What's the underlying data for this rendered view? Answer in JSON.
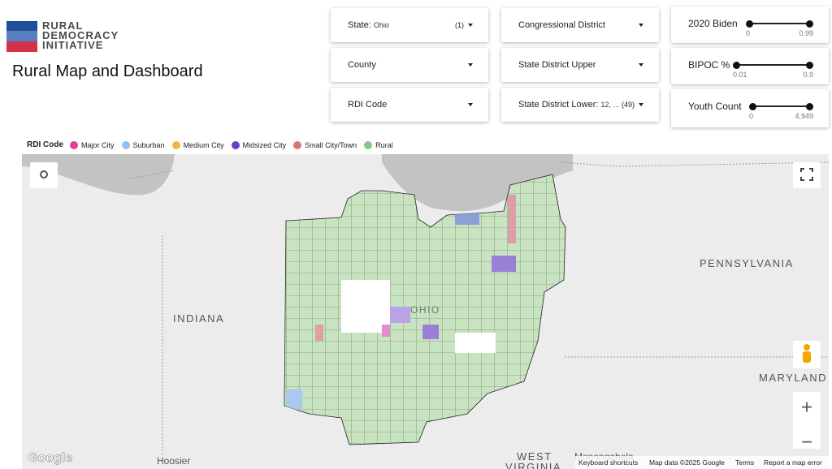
{
  "header": {
    "logo": [
      "RURAL",
      "DEMOCRACY",
      "INITIATIVE"
    ],
    "title": "Rural Map and Dashboard"
  },
  "filters": [
    {
      "label": "State:",
      "value": "Ohio",
      "count": "(1)"
    },
    {
      "label": "County"
    },
    {
      "label": "RDI Code"
    },
    {
      "label": "Congressional District"
    },
    {
      "label": "State District Upper"
    },
    {
      "label": "State District Lower:",
      "value": "12, ...",
      "count": "(49)"
    }
  ],
  "sliders": [
    {
      "label": "2020 Biden",
      "min": 0,
      "max": 0.99
    },
    {
      "label": "BIPOC %",
      "min": 0.01,
      "max": 0.9
    },
    {
      "label": "Youth Count",
      "min": 0,
      "max": "4,949"
    }
  ],
  "legend": {
    "title": "RDI Code",
    "items": [
      {
        "name": "Major City",
        "color": "#e0409a"
      },
      {
        "name": "Suburban",
        "color": "#8ec3f0"
      },
      {
        "name": "Medium City",
        "color": "#f0b83a"
      },
      {
        "name": "Midsized City",
        "color": "#6a3fc9"
      },
      {
        "name": "Small City/Town",
        "color": "#d97777"
      },
      {
        "name": "Rural",
        "color": "#86c786"
      }
    ]
  },
  "map": {
    "labels": [
      "INDIANA",
      "PENNSYLVANIA",
      "MARYLAND",
      "OHIO",
      "WEST",
      "VIRGINIA",
      "Hoosier",
      "Monongahela"
    ],
    "google": "Google",
    "footer": [
      "Keyboard shortcuts",
      "Map data ©2025 Google",
      "Terms",
      "Report a map error"
    ],
    "zoom": [
      "+",
      "−"
    ]
  }
}
